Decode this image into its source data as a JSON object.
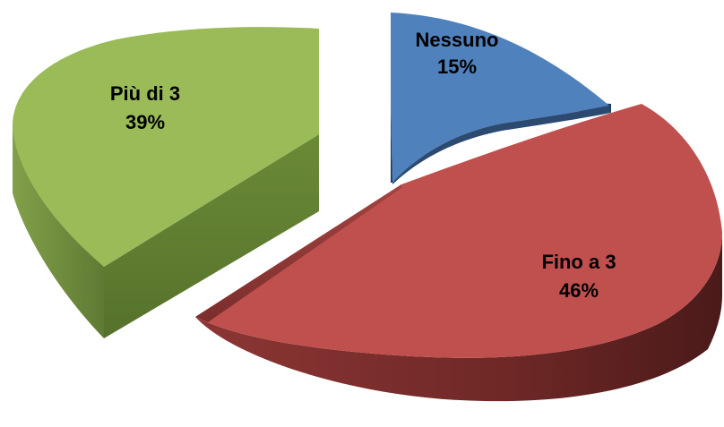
{
  "chart_data": {
    "type": "pie",
    "title": "",
    "three_d": true,
    "exploded": true,
    "legend": "none",
    "categories": [
      "Nessuno",
      "Fino a 3",
      "Più di 3"
    ],
    "values": [
      15,
      46,
      39
    ],
    "value_labels": [
      "15%",
      "46%",
      "39%"
    ],
    "colors": [
      "#4F81BD",
      "#C0504D",
      "#9BBB59"
    ]
  }
}
